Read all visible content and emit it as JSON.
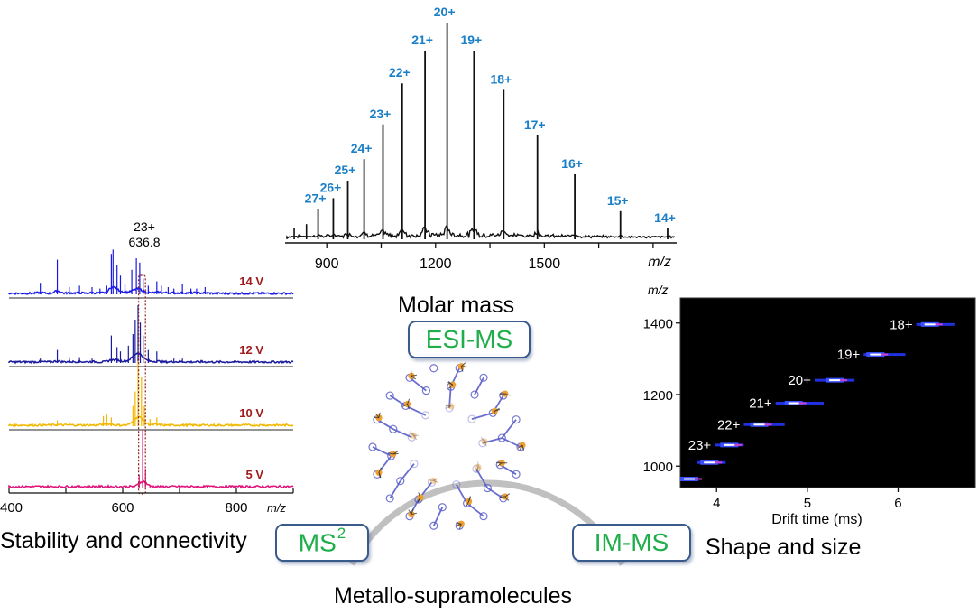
{
  "figure": {
    "center_title": "Metallo-supramolecules",
    "top_caption": "Molar mass",
    "left_caption": "Stability and connectivity",
    "right_caption": "Shape and size",
    "techniques": {
      "esi": "ESI-MS",
      "ms2_base": "MS",
      "ms2_sup": "2",
      "im": "IM-MS"
    },
    "colors": {
      "charge_label": "#1a7fc7",
      "technique_text": "#1fae4a",
      "box_border": "#3a5a8c",
      "voltage_label": "#a01c1c",
      "ring": "#c0c0c0",
      "molecule_ligand": "#5a5ec8",
      "molecule_metal": "#f0a030"
    },
    "molecule": {
      "description": "metallo-supramolecular cage structure",
      "icon": "molecule-structure-icon"
    }
  },
  "chart_data": [
    {
      "id": "esi_ms",
      "type": "line",
      "title": "",
      "xlabel": "m/z",
      "ylabel": "",
      "xlim": [
        790,
        1860
      ],
      "ylim": [
        0,
        100
      ],
      "xticks": [
        900,
        1200,
        1500
      ],
      "minor_xticks": [
        1050,
        1350,
        1650,
        1800
      ],
      "peaks": [
        {
          "label": "27+",
          "mz": 876,
          "intensity": 14
        },
        {
          "label": "26+",
          "mz": 918,
          "intensity": 19
        },
        {
          "label": "25+",
          "mz": 958,
          "intensity": 27
        },
        {
          "label": "24+",
          "mz": 1003,
          "intensity": 37
        },
        {
          "label": "23+",
          "mz": 1055,
          "intensity": 53
        },
        {
          "label": "22+",
          "mz": 1108,
          "intensity": 72
        },
        {
          "label": "21+",
          "mz": 1171,
          "intensity": 87
        },
        {
          "label": "20+",
          "mz": 1232,
          "intensity": 100
        },
        {
          "label": "19+",
          "mz": 1306,
          "intensity": 87
        },
        {
          "label": "18+",
          "mz": 1388,
          "intensity": 69
        },
        {
          "label": "17+",
          "mz": 1481,
          "intensity": 48
        },
        {
          "label": "16+",
          "mz": 1584,
          "intensity": 30
        },
        {
          "label": "15+",
          "mz": 1710,
          "intensity": 13
        },
        {
          "label": "14+",
          "mz": 1840,
          "intensity": 5
        }
      ],
      "minor_peaks": [
        {
          "mz": 810,
          "intensity": 5
        },
        {
          "mz": 844,
          "intensity": 7
        }
      ]
    },
    {
      "id": "ms2",
      "type": "line",
      "title": "",
      "xlabel": "m/z",
      "xlim": [
        400,
        900
      ],
      "xticks": [
        400,
        600,
        800
      ],
      "minor_xticks": [
        500,
        700,
        900
      ],
      "annotation": {
        "line1": "23+",
        "line2": "636.8",
        "mz": 636.8
      },
      "highlight_window": [
        628,
        640
      ],
      "series": [
        {
          "name": "14 V",
          "color": "#1a1ae6",
          "peaks": [
            [
              455,
              8
            ],
            [
              485,
              24
            ],
            [
              506,
              5
            ],
            [
              524,
              6
            ],
            [
              546,
              5
            ],
            [
              560,
              4
            ],
            [
              572,
              6
            ],
            [
              580,
              28
            ],
            [
              583,
              31
            ],
            [
              590,
              20
            ],
            [
              596,
              13
            ],
            [
              604,
              7
            ],
            [
              616,
              17
            ],
            [
              624,
              25
            ],
            [
              630,
              22
            ],
            [
              636,
              11
            ],
            [
              645,
              6
            ],
            [
              660,
              9
            ],
            [
              668,
              6
            ],
            [
              680,
              5
            ],
            [
              690,
              4
            ],
            [
              705,
              7
            ],
            [
              720,
              4
            ],
            [
              730,
              4
            ],
            [
              745,
              5
            ]
          ]
        },
        {
          "name": "12 V",
          "color": "#1a1a9e",
          "peaks": [
            [
              455,
              3
            ],
            [
              485,
              9
            ],
            [
              506,
              4
            ],
            [
              524,
              4
            ],
            [
              546,
              3
            ],
            [
              580,
              19
            ],
            [
              590,
              11
            ],
            [
              596,
              8
            ],
            [
              610,
              12
            ],
            [
              618,
              20
            ],
            [
              622,
              30
            ],
            [
              627,
              40
            ],
            [
              631,
              28
            ],
            [
              636,
              19
            ],
            [
              645,
              9
            ],
            [
              660,
              8
            ],
            [
              690,
              3
            ],
            [
              705,
              3
            ],
            [
              740,
              2
            ]
          ]
        },
        {
          "name": "10 V",
          "color": "#f2b800",
          "peaks": [
            [
              485,
              4
            ],
            [
              506,
              3
            ],
            [
              566,
              7
            ],
            [
              572,
              8
            ],
            [
              580,
              6
            ],
            [
              618,
              14
            ],
            [
              622,
              24
            ],
            [
              627,
              45
            ],
            [
              633,
              34
            ],
            [
              638,
              14
            ],
            [
              648,
              5
            ],
            [
              660,
              6
            ]
          ]
        },
        {
          "name": "5 V",
          "color": "#e0127a",
          "peaks": [
            [
              629,
              9
            ],
            [
              635,
              40
            ],
            [
              640,
              13
            ],
            [
              648,
              2
            ]
          ]
        }
      ]
    },
    {
      "id": "im_ms",
      "type": "heatmap",
      "title": "",
      "xlabel": "Drift time (ms)",
      "ylabel": "m/z",
      "xlim": [
        3.6,
        6.85
      ],
      "ylim": [
        940,
        1470
      ],
      "xticks": [
        4,
        5,
        6
      ],
      "yticks": [
        1000,
        1200,
        1400
      ],
      "background": "#000000",
      "spots": [
        {
          "label": "",
          "mz": 964,
          "t_start": 3.6,
          "t_end": 3.78,
          "t_peak": 3.7
        },
        {
          "label": "",
          "mz": 1010,
          "t_start": 3.78,
          "t_end": 4.1,
          "t_peak": 3.92
        },
        {
          "label": "23+",
          "mz": 1059,
          "t_start": 3.98,
          "t_end": 4.3,
          "t_peak": 4.14
        },
        {
          "label": "22+",
          "mz": 1116,
          "t_start": 4.3,
          "t_end": 4.75,
          "t_peak": 4.47
        },
        {
          "label": "21+",
          "mz": 1176,
          "t_start": 4.65,
          "t_end": 5.18,
          "t_peak": 4.85
        },
        {
          "label": "20+",
          "mz": 1240,
          "t_start": 5.08,
          "t_end": 5.52,
          "t_peak": 5.3
        },
        {
          "label": "19+",
          "mz": 1312,
          "t_start": 5.62,
          "t_end": 6.08,
          "t_peak": 5.75
        },
        {
          "label": "18+",
          "mz": 1396,
          "t_start": 6.2,
          "t_end": 6.62,
          "t_peak": 6.35
        }
      ]
    }
  ]
}
